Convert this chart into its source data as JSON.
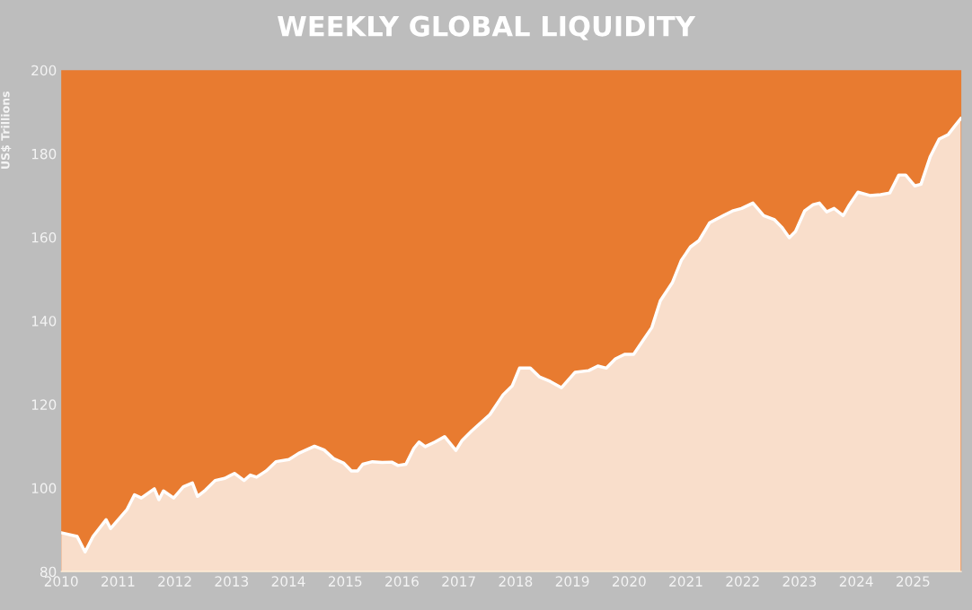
{
  "chart_data": {
    "type": "area",
    "title": "WEEKLY GLOBAL LIQUIDITY",
    "ylabel": "US$ Trillions",
    "x": [
      2010.0,
      2010.28,
      2010.42,
      2010.56,
      2010.79,
      2010.87,
      2011.16,
      2011.29,
      2011.41,
      2011.64,
      2011.72,
      2011.8,
      2011.98,
      2012.15,
      2012.31,
      2012.4,
      2012.54,
      2012.71,
      2012.88,
      2013.05,
      2013.22,
      2013.33,
      2013.44,
      2013.61,
      2013.78,
      2014.01,
      2014.18,
      2014.46,
      2014.63,
      2014.8,
      2014.97,
      2015.11,
      2015.22,
      2015.31,
      2015.48,
      2015.65,
      2015.82,
      2015.93,
      2016.07,
      2016.21,
      2016.3,
      2016.41,
      2016.58,
      2016.75,
      2016.95,
      2017.06,
      2017.23,
      2017.55,
      2017.78,
      2017.94,
      2018.07,
      2018.26,
      2018.42,
      2018.61,
      2018.81,
      2019.05,
      2019.29,
      2019.45,
      2019.6,
      2019.76,
      2019.92,
      2020.08,
      2020.24,
      2020.4,
      2020.55,
      2020.76,
      2020.92,
      2021.08,
      2021.23,
      2021.42,
      2021.66,
      2021.82,
      2021.98,
      2022.18,
      2022.37,
      2022.56,
      2022.69,
      2022.82,
      2022.93,
      2023.09,
      2023.24,
      2023.35,
      2023.48,
      2023.61,
      2023.77,
      2023.88,
      2024.03,
      2024.24,
      2024.43,
      2024.59,
      2024.75,
      2024.87,
      2025.03,
      2025.14,
      2025.3,
      2025.46,
      2025.62,
      2025.74,
      2025.84
    ],
    "series": [
      {
        "color": "#ffffff",
        "values": [
          89.3,
          88.4,
          84.7,
          88.4,
          92.4,
          90.3,
          94.9,
          98.4,
          97.6,
          99.8,
          97.2,
          99.3,
          97.6,
          100.3,
          101.2,
          98.0,
          99.5,
          101.8,
          102.3,
          103.5,
          101.8,
          103.1,
          102.6,
          104.1,
          106.3,
          106.8,
          108.3,
          110.0,
          109.1,
          107.0,
          106.0,
          104.1,
          104.1,
          105.7,
          106.3,
          106.1,
          106.2,
          105.4,
          105.7,
          109.5,
          111.0,
          109.9,
          111.0,
          112.3,
          109.0,
          111.4,
          113.7,
          117.6,
          122.3,
          124.4,
          128.7,
          128.7,
          126.6,
          125.5,
          124.0,
          127.7,
          128.1,
          129.2,
          128.7,
          130.9,
          132.0,
          132.0,
          135.2,
          138.4,
          144.8,
          149.1,
          154.5,
          157.7,
          159.2,
          163.5,
          165.2,
          166.3,
          166.9,
          168.2,
          165.2,
          164.2,
          162.4,
          159.9,
          161.4,
          166.3,
          167.8,
          168.2,
          166.1,
          166.9,
          165.2,
          167.8,
          170.8,
          170.0,
          170.2,
          170.6,
          174.9,
          174.9,
          172.3,
          172.7,
          179.2,
          183.5,
          184.6,
          186.7,
          188.4
        ]
      }
    ],
    "xlim": [
      2010,
      2025.85
    ],
    "xticks": [
      2010,
      2011,
      2012,
      2013,
      2014,
      2015,
      2016,
      2017,
      2018,
      2019,
      2020,
      2021,
      2022,
      2023,
      2024,
      2025
    ],
    "ylim": [
      80,
      200
    ],
    "yticks": [
      80,
      100,
      120,
      140,
      160,
      180,
      200
    ],
    "grid": false
  }
}
